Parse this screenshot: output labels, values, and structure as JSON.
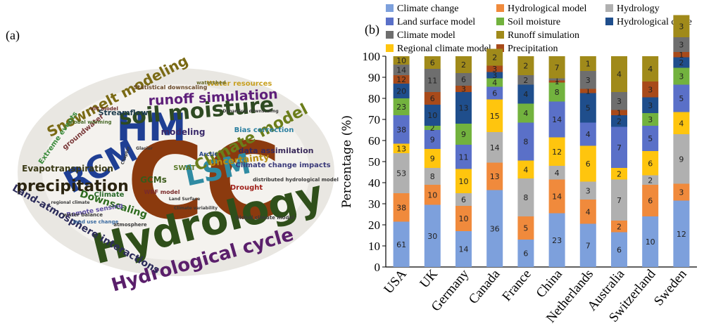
{
  "panel_a_label": "(a)",
  "panel_b_label": "(b)",
  "word_cloud": {
    "words": [
      {
        "text": "CC",
        "color": "#8b3a0e"
      },
      {
        "text": "HM",
        "color": "#1f3f94"
      },
      {
        "text": "RCM",
        "color": "#1f3f94"
      },
      {
        "text": "LSM",
        "color": "#2f8ba3"
      },
      {
        "text": "Hydrology",
        "color": "#2f4f1a"
      },
      {
        "text": "Hydrological cycle",
        "color": "#5a1f6b"
      },
      {
        "text": "soil moisture",
        "color": "#2e4a22"
      },
      {
        "text": "precipitation",
        "color": "#2b2410"
      },
      {
        "text": "Climate model",
        "color": "#6b7d1a"
      },
      {
        "text": "Snowmelt modeling",
        "color": "#7a6a14"
      },
      {
        "text": "runoff simulation",
        "color": "#5e1f7a"
      },
      {
        "text": "Land-atmosphere interactions",
        "color": "#2c2c5a"
      },
      {
        "text": "Evapotranspiration",
        "color": "#3a3a16"
      },
      {
        "text": "Downscaling",
        "color": "#2e6b1f"
      },
      {
        "text": "Uncertainty",
        "color": "#b88d10"
      },
      {
        "text": "data assimilation",
        "color": "#3a2a5a"
      },
      {
        "text": "Climate change impacts",
        "color": "#3a3a7a"
      },
      {
        "text": "Bias correction",
        "color": "#2b7fa0"
      },
      {
        "text": "Streamflow",
        "color": "#1c3a4a"
      },
      {
        "text": "groundwater",
        "color": "#7a3a3a"
      },
      {
        "text": "Extreme events",
        "color": "#3a8a3a"
      },
      {
        "text": "Water resources",
        "color": "#c8a020"
      },
      {
        "text": "GCMs",
        "color": "#3a5a1a"
      },
      {
        "text": "SWAT",
        "color": "#5a7a2a"
      },
      {
        "text": "Drought",
        "color": "#a0201a"
      },
      {
        "text": "Remote sensing",
        "color": "#5a4aa0"
      },
      {
        "text": "modeling",
        "color": "#3a2a6a"
      },
      {
        "text": "Climate",
        "color": "#2a6a2a"
      },
      {
        "text": "Statistical downscaling",
        "color": "#6a4a2a"
      },
      {
        "text": "WRF model",
        "color": "#7a2a2a"
      },
      {
        "text": "global warming",
        "color": "#4a6a2a"
      },
      {
        "text": "water balance",
        "color": "#3a3a3a"
      },
      {
        "text": "land use change",
        "color": "#3a6aa0"
      },
      {
        "text": "Arctic",
        "color": "#2a4a8a"
      },
      {
        "text": "watershed",
        "color": "#6a6a2a"
      },
      {
        "text": "VIC model",
        "color": "#6a2a2a"
      },
      {
        "text": "distributed hydrological model",
        "color": "#3a3a3a"
      },
      {
        "text": "Global climate model",
        "color": "#3a3a3a"
      },
      {
        "text": "atmosphere",
        "color": "#3a3a3a"
      },
      {
        "text": "Glacier",
        "color": "#3a3a3a"
      },
      {
        "text": "Climate variability",
        "color": "#3a3a3a"
      },
      {
        "text": "Land Surface",
        "color": "#3a3a3a"
      },
      {
        "text": "Dynamical downscaling",
        "color": "#3a3a3a"
      },
      {
        "text": "regional climate",
        "color": "#3a3a3a"
      },
      {
        "text": "Chapter",
        "color": "#3a3a3a"
      }
    ]
  },
  "chart_data": {
    "type": "bar",
    "stacked": true,
    "orientation": "vertical",
    "ylabel": "Percentage (%)",
    "xlabel": "",
    "ylim": [
      0,
      100
    ],
    "yticks": [
      0,
      10,
      20,
      30,
      40,
      50,
      60,
      70,
      80,
      90,
      100
    ],
    "categories": [
      "USA",
      "UK",
      "Germany",
      "Canada",
      "France",
      "China",
      "Netherlands",
      "Australia",
      "Switzerland",
      "Sweden"
    ],
    "legend_position": "top",
    "series": [
      {
        "name": "Climate change",
        "color": "#7da0dc",
        "counts": [
          61,
          30,
          14,
          36,
          6,
          23,
          7,
          6,
          10,
          12
        ],
        "percent": [
          21.5,
          29.5,
          17,
          36.5,
          13,
          25.5,
          20.5,
          16.5,
          24,
          31.5
        ]
      },
      {
        "name": "Hydrological model",
        "color": "#f08a3c",
        "counts": [
          38,
          10,
          10,
          13,
          5,
          14,
          4,
          2,
          6,
          3
        ],
        "percent": [
          13.5,
          9.5,
          12,
          13,
          11,
          16,
          11.5,
          5.5,
          15,
          8
        ]
      },
      {
        "name": "Hydrology",
        "color": "#b0b0b0",
        "counts": [
          53,
          8,
          6,
          14,
          8,
          4,
          3,
          7,
          2,
          9
        ],
        "percent": [
          19,
          8,
          6,
          14.5,
          18,
          6.5,
          8.5,
          19.5,
          4.5,
          23.5
        ]
      },
      {
        "name": "Regional climate model",
        "color": "#ffc50e",
        "counts": [
          13,
          9,
          10,
          15,
          4,
          12,
          6,
          2,
          6,
          4
        ],
        "percent": [
          4.5,
          9,
          11.5,
          15.5,
          8.5,
          13.5,
          17,
          5.5,
          11.5,
          10.5
        ]
      },
      {
        "name": "Land surface model",
        "color": "#5a70c8",
        "counts": [
          38,
          9,
          11,
          6,
          8,
          14,
          4,
          7,
          5,
          5
        ],
        "percent": [
          13.5,
          9,
          11.5,
          6,
          18,
          17,
          11,
          19.5,
          12,
          13
        ]
      },
      {
        "name": "Soil moisture",
        "color": "#72b23e",
        "counts": [
          23,
          2,
          9,
          4,
          4,
          8,
          0,
          0,
          3,
          3
        ],
        "percent": [
          8,
          2,
          10,
          4,
          9,
          9,
          0,
          0,
          6,
          8
        ]
      },
      {
        "name": "Hydrological cycle",
        "color": "#1f4e8c",
        "counts": [
          20,
          10,
          13,
          3,
          4,
          0,
          5,
          2,
          3,
          2
        ],
        "percent": [
          7,
          10,
          15,
          3,
          9,
          0,
          14,
          5.5,
          7.5,
          5
        ]
      },
      {
        "name": "Precipitation",
        "color": "#a84a1a",
        "counts": [
          12,
          6,
          3,
          3,
          0,
          1,
          1,
          1,
          3,
          1
        ],
        "percent": [
          4,
          6,
          3,
          3,
          0,
          1,
          2,
          2.5,
          7.5,
          2.5
        ]
      },
      {
        "name": "Climate model",
        "color": "#6e6e6e",
        "counts": [
          14,
          11,
          6,
          0,
          2,
          1,
          3,
          3,
          0,
          3
        ],
        "percent": [
          5,
          11,
          6,
          0,
          4.5,
          1,
          8.5,
          8.5,
          0,
          7
        ]
      },
      {
        "name": "Runoff simulation",
        "color": "#a08a1a",
        "counts": [
          10,
          6,
          2,
          2,
          2,
          7,
          1,
          4,
          4,
          3
        ],
        "percent": [
          4,
          6,
          8,
          8,
          9,
          10.5,
          7,
          17,
          12,
          10.5
        ]
      }
    ]
  }
}
